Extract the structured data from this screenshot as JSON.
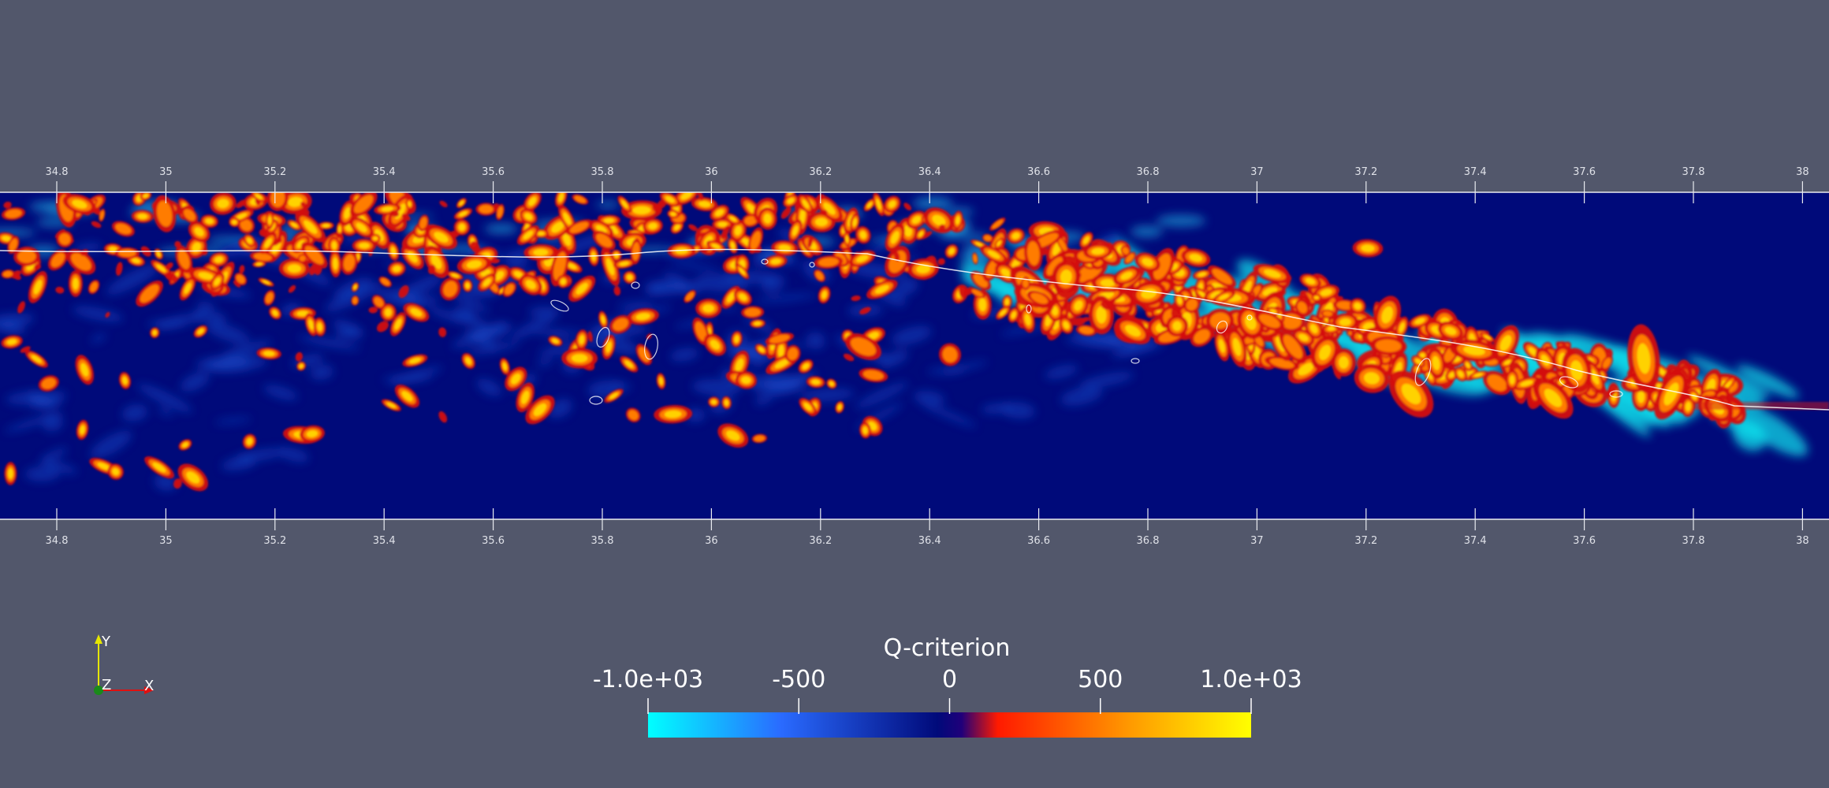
{
  "scene": {
    "background": "#52576b",
    "field_base_color": "#000a7a",
    "axis_color": "#e9ebf0"
  },
  "x_axis": {
    "ticks": [
      "34.8",
      "35",
      "35.2",
      "35.4",
      "35.6",
      "35.8",
      "36",
      "36.2",
      "36.4",
      "36.6",
      "36.8",
      "37",
      "37.2",
      "37.4",
      "37.6",
      "37.8",
      "38"
    ]
  },
  "colorbar": {
    "title": "Q-criterion",
    "labels": [
      "-1.0e+03",
      "-500",
      "0",
      "500",
      "1.0e+03"
    ],
    "colors": [
      "#00ffff",
      "#2a6bff",
      "#000a7a",
      "#ff1a00",
      "#ff9a00",
      "#ffff00"
    ]
  },
  "orientation": {
    "y_label": "Y",
    "z_label": "Z",
    "x_label": "X",
    "y_color": "#e6e600",
    "z_color": "#1a8a1a",
    "x_color": "#e01010"
  }
}
